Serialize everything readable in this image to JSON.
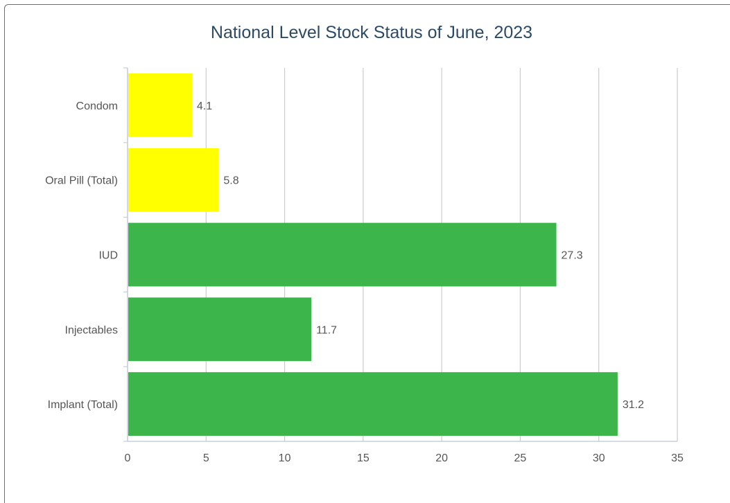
{
  "chart_data": {
    "type": "bar",
    "orientation": "horizontal",
    "title": "National Level Stock Status of June, 2023",
    "categories": [
      "Condom",
      "Oral Pill (Total)",
      "IUD",
      "Injectables",
      "Implant (Total)"
    ],
    "values": [
      4.1,
      5.8,
      27.3,
      11.7,
      31.2
    ],
    "data_labels": [
      "4.1",
      "5.8",
      "27.3",
      "11.7",
      "31.2"
    ],
    "bar_colors": [
      "#ffff00",
      "#ffff00",
      "#3cb54a",
      "#3cb54a",
      "#3cb54a"
    ],
    "xlim": [
      0,
      35
    ],
    "x_ticks": [
      0,
      5,
      10,
      15,
      20,
      25,
      30,
      35
    ],
    "x_tick_labels": [
      "0",
      "5",
      "10",
      "15",
      "20",
      "25",
      "30",
      "35"
    ],
    "xlabel": "",
    "ylabel": "",
    "grid": true,
    "legend": "none"
  }
}
